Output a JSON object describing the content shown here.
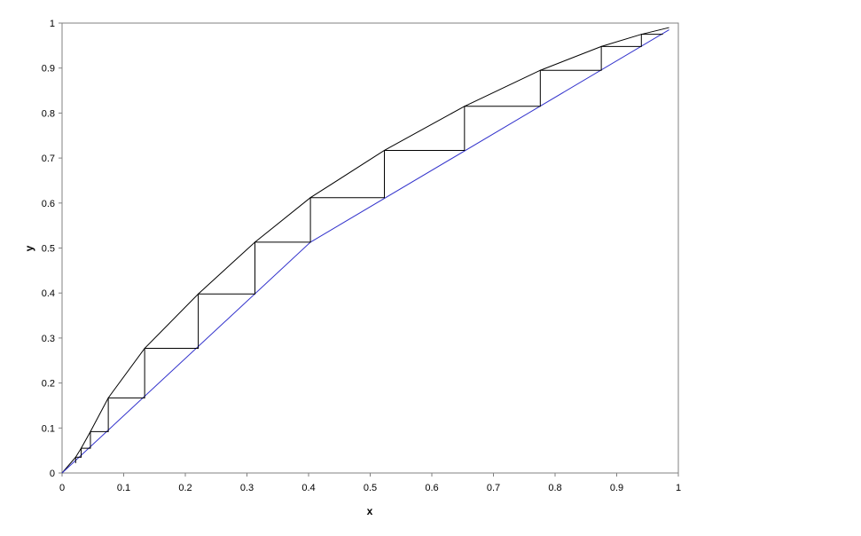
{
  "chart_data": {
    "type": "line",
    "x_label": "x",
    "y_label": "y",
    "xlim": [
      0,
      1
    ],
    "ylim": [
      0,
      1
    ],
    "xticks": [
      0,
      0.1,
      0.2,
      0.3,
      0.4,
      0.5,
      0.6,
      0.7,
      0.8,
      0.9,
      1
    ],
    "yticks": [
      0,
      0.1,
      0.2,
      0.3,
      0.4,
      0.5,
      0.6,
      0.7,
      0.8,
      0.9,
      1
    ],
    "grid": false,
    "series": [
      {
        "color": "#000000",
        "x": [
          0,
          0.022,
          0.031,
          0.046,
          0.075,
          0.134,
          0.221,
          0.313,
          0.403,
          0.523,
          0.653,
          0.776,
          0.875,
          0.94,
          0.985
        ],
        "values": [
          0,
          0.035,
          0.055,
          0.092,
          0.167,
          0.277,
          0.398,
          0.513,
          0.612,
          0.717,
          0.815,
          0.895,
          0.948,
          0.975,
          0.99
        ]
      },
      {
        "color": "#3333cc",
        "x": [
          0,
          0.403,
          0.985
        ],
        "values": [
          0,
          0.513,
          0.985
        ]
      },
      {
        "color": "#000000",
        "x": [
          0.975,
          0.94,
          0.94,
          0.875,
          0.875,
          0.776,
          0.776,
          0.653,
          0.653,
          0.523,
          0.523,
          0.403,
          0.403,
          0.313,
          0.313,
          0.221,
          0.221,
          0.134,
          0.134,
          0.075,
          0.075,
          0.046,
          0.046,
          0.031,
          0.031,
          0.022,
          0.022
        ],
        "values": [
          0.975,
          0.975,
          0.948,
          0.948,
          0.895,
          0.895,
          0.815,
          0.815,
          0.717,
          0.717,
          0.612,
          0.612,
          0.513,
          0.513,
          0.398,
          0.398,
          0.277,
          0.277,
          0.167,
          0.167,
          0.092,
          0.092,
          0.055,
          0.055,
          0.035,
          0.035,
          0.022
        ]
      }
    ]
  }
}
